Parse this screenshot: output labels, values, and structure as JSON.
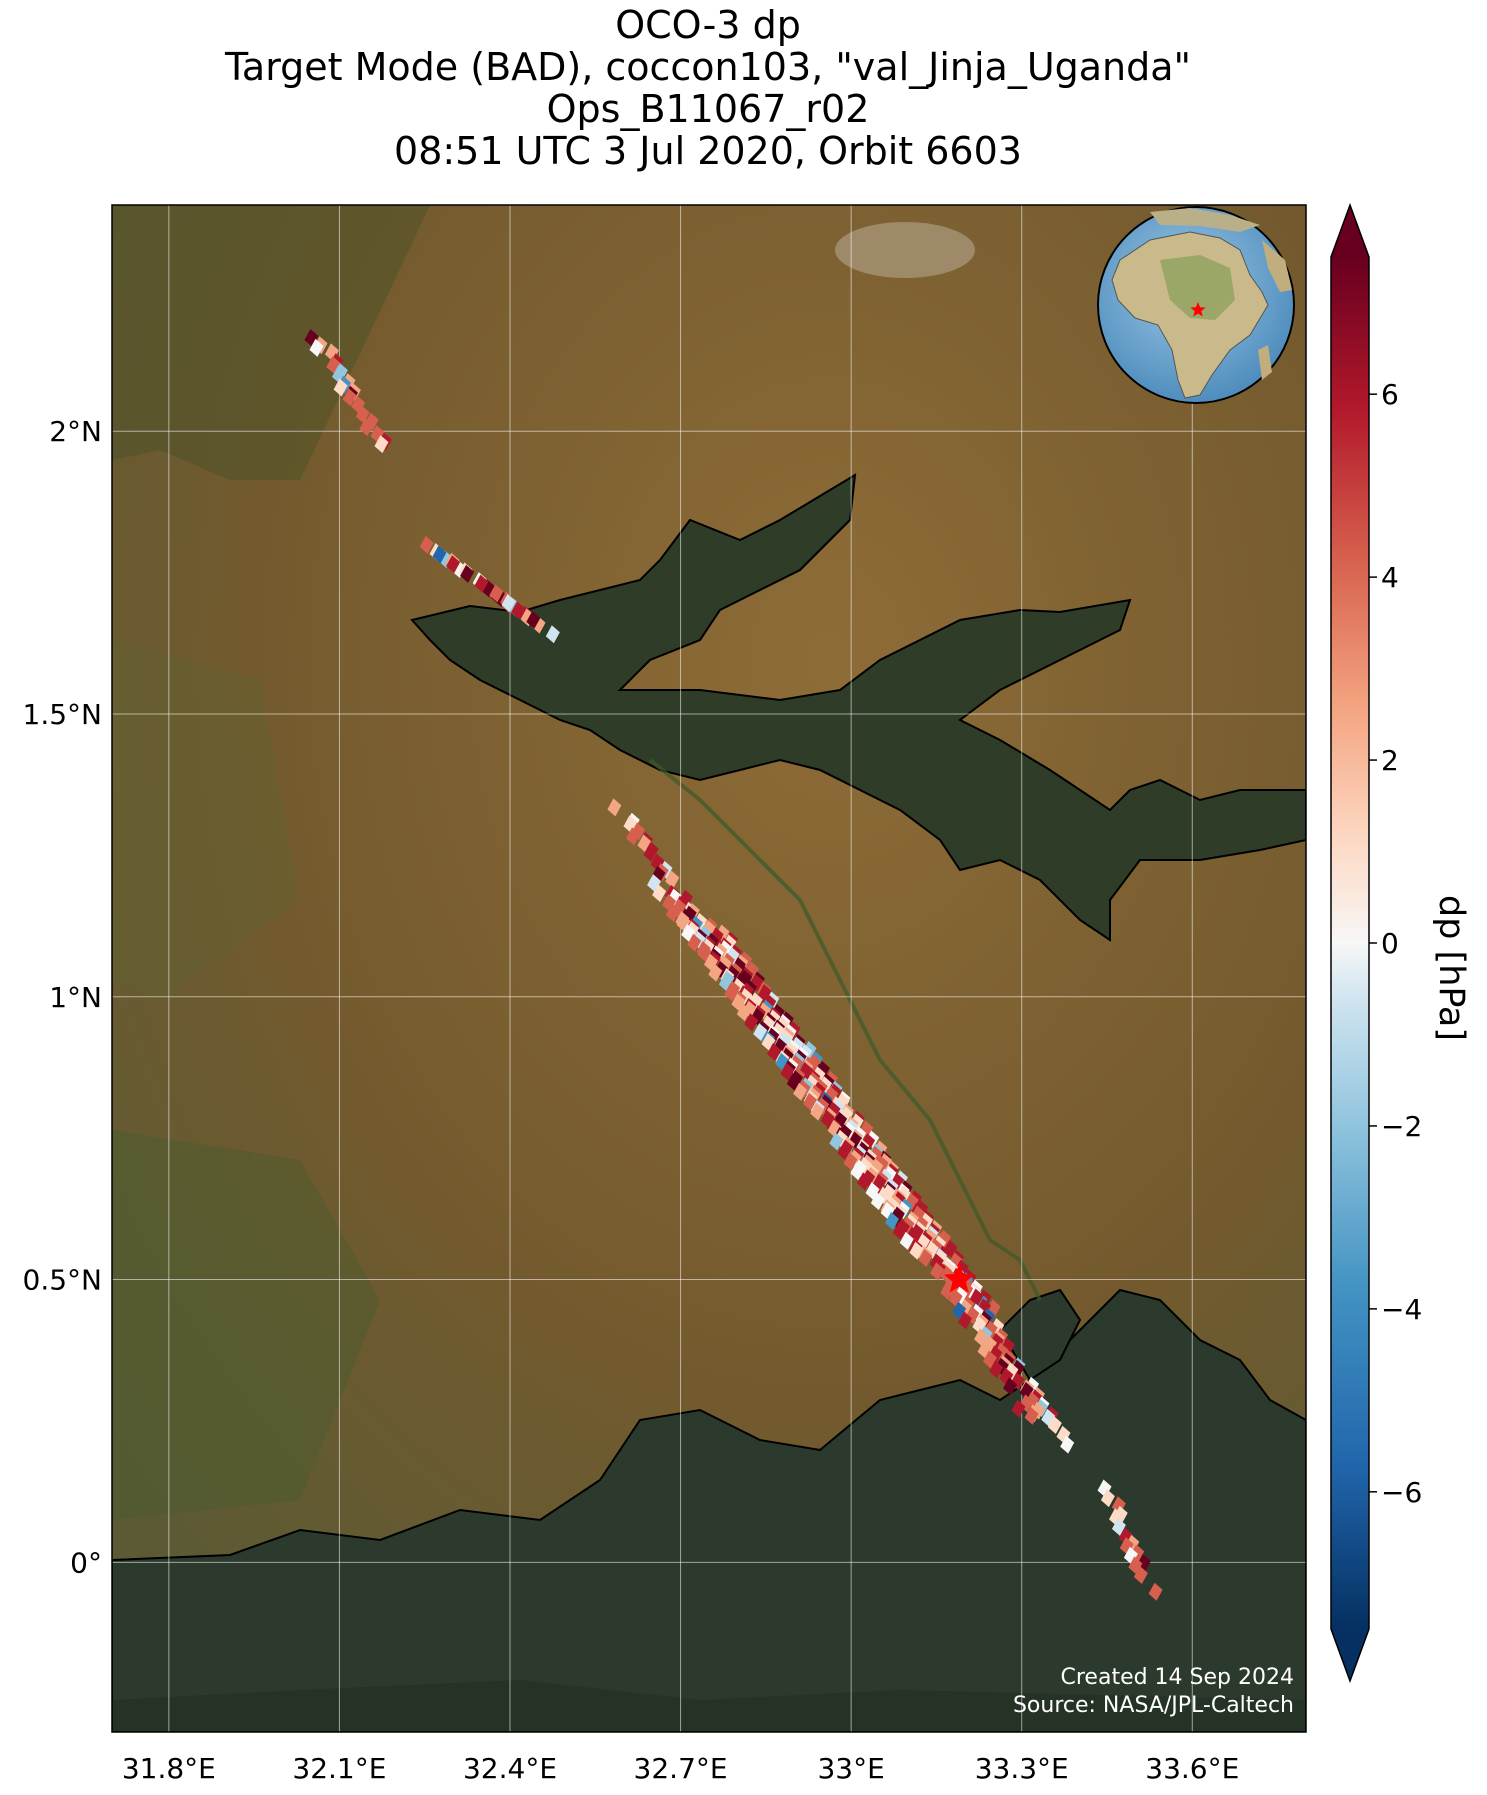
{
  "title": {
    "line1": "OCO-3 dp",
    "line2": "Target Mode (BAD), coccon103, \"val_Jinja_Uganda\"",
    "line3": "Ops_B11067_r02",
    "line4": "08:51 UTC 3 Jul 2020, Orbit 6603"
  },
  "map": {
    "lon_range": [
      31.7,
      33.8
    ],
    "lat_range": [
      -0.3,
      2.4
    ],
    "lon_ticks": [
      {
        "value": 31.8,
        "label": "31.8°E"
      },
      {
        "value": 32.1,
        "label": "32.1°E"
      },
      {
        "value": 32.4,
        "label": "32.4°E"
      },
      {
        "value": 32.7,
        "label": "32.7°E"
      },
      {
        "value": 33.0,
        "label": "33°E"
      },
      {
        "value": 33.3,
        "label": "33.3°E"
      },
      {
        "value": 33.6,
        "label": "33.6°E"
      }
    ],
    "lat_ticks": [
      {
        "value": 2.0,
        "label": "2°N"
      },
      {
        "value": 1.5,
        "label": "1.5°N"
      },
      {
        "value": 1.0,
        "label": "1°N"
      },
      {
        "value": 0.5,
        "label": "0.5°N"
      },
      {
        "value": 0.0,
        "label": "0°"
      }
    ],
    "grid": true,
    "background": "satellite imagery (savanna, Lake Kyoga, Lake Victoria)",
    "target": {
      "name": "val_Jinja_Uganda",
      "lon": 33.19,
      "lat": 0.5,
      "marker": "red-star"
    },
    "inset": {
      "type": "globe",
      "marker_lon": 33.2,
      "marker_lat": 0.5,
      "position": "top-right"
    },
    "credit_line1": "Created 14 Sep 2024",
    "credit_line2": "Source: NASA/JPL-Caltech"
  },
  "colorbar": {
    "label": "dp [hPa]",
    "range": [
      -7.5,
      7.5
    ],
    "extend": "both",
    "cmap": "RdBu_r",
    "ticks": [
      {
        "value": 6,
        "label": "6"
      },
      {
        "value": 4,
        "label": "4"
      },
      {
        "value": 2,
        "label": "2"
      },
      {
        "value": 0,
        "label": "0"
      },
      {
        "value": -2,
        "label": "−2"
      },
      {
        "value": -4,
        "label": "−4"
      },
      {
        "value": -6,
        "label": "−6"
      }
    ]
  },
  "colors": {
    "water": "#2d3a26",
    "land": "#7a6030",
    "target_star": "#ff0000"
  }
}
